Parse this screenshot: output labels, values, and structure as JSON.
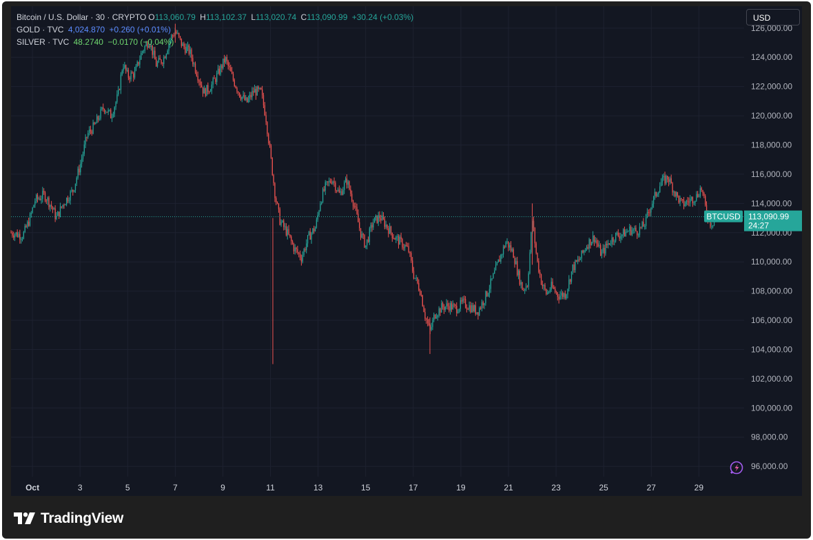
{
  "legend": {
    "main": {
      "title": "Bitcoin / U.S. Dollar · 30 · CRYPTO",
      "open_label": "O",
      "open": "113,060.79",
      "high_label": "H",
      "high": "113,102.37",
      "low_label": "L",
      "low": "113,020.74",
      "close_label": "C",
      "close": "113,090.99",
      "change": "+30.24 (+0.03%)"
    },
    "gold": {
      "title": "GOLD · TVC",
      "value": "4,024.870",
      "change": "+0.260 (+0.01%)"
    },
    "silver": {
      "title": "SILVER · TVC",
      "value": "48.2740",
      "change": "−0.0170 (−0.04%)"
    }
  },
  "currency_button": "USD",
  "price_tag": {
    "symbol": "BTCUSD",
    "price": "113,090.99",
    "countdown": "24:27"
  },
  "brand": "TradingView",
  "colors": {
    "up": "#26a69a",
    "down": "#ef5350",
    "background": "#131722",
    "grid": "#1e2230",
    "tag": "#26a69a"
  },
  "icons": {
    "logo": "tradingview-logo-icon",
    "pulse": "lightning-pulse-icon"
  },
  "chart_data": {
    "type": "candlestick",
    "symbol": "BTCUSD",
    "interval": "30",
    "y_ticks": [
      96000,
      98000,
      100000,
      102000,
      104000,
      106000,
      108000,
      110000,
      112000,
      114000,
      116000,
      118000,
      120000,
      122000,
      124000,
      126000
    ],
    "y_tick_labels": [
      "96,000.00",
      "98,000.00",
      "100,000.00",
      "102,000.00",
      "104,000.00",
      "106,000.00",
      "108,000.00",
      "110,000.00",
      "112,000.00",
      "114,000.00",
      "116,000.00",
      "118,000.00",
      "120,000.00",
      "122,000.00",
      "124,000.00",
      "126,000.00"
    ],
    "x_labels": [
      "Oct",
      "3",
      "5",
      "7",
      "9",
      "11",
      "13",
      "15",
      "17",
      "19",
      "21",
      "23",
      "25",
      "27",
      "29"
    ],
    "x_label_days": [
      1,
      3,
      5,
      7,
      9,
      11,
      13,
      15,
      17,
      19,
      21,
      23,
      25,
      27,
      29
    ],
    "x_range_days": [
      0.1,
      30.9
    ],
    "ylim": [
      95300,
      127500
    ],
    "last_price": 113090.99,
    "price_path": [
      [
        0.1,
        112000
      ],
      [
        0.6,
        111800
      ],
      [
        0.9,
        113000
      ],
      [
        1.1,
        114200
      ],
      [
        1.5,
        114600
      ],
      [
        1.8,
        113800
      ],
      [
        2.0,
        113000
      ],
      [
        2.3,
        114000
      ],
      [
        2.7,
        114900
      ],
      [
        3.0,
        116600
      ],
      [
        3.3,
        118700
      ],
      [
        3.6,
        119300
      ],
      [
        4.0,
        120600
      ],
      [
        4.3,
        120000
      ],
      [
        4.6,
        121400
      ],
      [
        4.8,
        123600
      ],
      [
        5.0,
        122700
      ],
      [
        5.3,
        122900
      ],
      [
        5.6,
        124400
      ],
      [
        5.9,
        125200
      ],
      [
        6.2,
        123500
      ],
      [
        6.5,
        123900
      ],
      [
        6.8,
        125300
      ],
      [
        7.0,
        125800
      ],
      [
        7.3,
        124800
      ],
      [
        7.6,
        124400
      ],
      [
        7.9,
        123000
      ],
      [
        8.2,
        121600
      ],
      [
        8.5,
        122000
      ],
      [
        8.8,
        122900
      ],
      [
        9.1,
        123900
      ],
      [
        9.4,
        122600
      ],
      [
        9.7,
        121500
      ],
      [
        10.0,
        120900
      ],
      [
        10.3,
        121700
      ],
      [
        10.6,
        121600
      ],
      [
        10.8,
        120000
      ],
      [
        11.0,
        117300
      ],
      [
        11.2,
        114500
      ],
      [
        11.4,
        112800
      ],
      [
        11.7,
        112000
      ],
      [
        12.0,
        110900
      ],
      [
        12.3,
        110300
      ],
      [
        12.6,
        111700
      ],
      [
        12.9,
        112400
      ],
      [
        13.1,
        114200
      ],
      [
        13.3,
        115100
      ],
      [
        13.6,
        115700
      ],
      [
        13.9,
        114600
      ],
      [
        14.2,
        115600
      ],
      [
        14.5,
        114000
      ],
      [
        14.8,
        111900
      ],
      [
        15.0,
        111100
      ],
      [
        15.3,
        112700
      ],
      [
        15.6,
        113100
      ],
      [
        15.9,
        112400
      ],
      [
        16.2,
        111700
      ],
      [
        16.5,
        111300
      ],
      [
        16.8,
        110800
      ],
      [
        17.0,
        109200
      ],
      [
        17.3,
        108000
      ],
      [
        17.5,
        106300
      ],
      [
        17.7,
        105200
      ],
      [
        17.9,
        106400
      ],
      [
        18.2,
        106900
      ],
      [
        18.5,
        107000
      ],
      [
        18.8,
        106800
      ],
      [
        19.1,
        107200
      ],
      [
        19.4,
        106900
      ],
      [
        19.7,
        106600
      ],
      [
        20.0,
        107500
      ],
      [
        20.3,
        108700
      ],
      [
        20.6,
        110100
      ],
      [
        20.9,
        111400
      ],
      [
        21.2,
        110600
      ],
      [
        21.4,
        109200
      ],
      [
        21.6,
        108100
      ],
      [
        21.8,
        108500
      ],
      [
        22.0,
        112900
      ],
      [
        22.2,
        110100
      ],
      [
        22.4,
        108500
      ],
      [
        22.6,
        107800
      ],
      [
        22.8,
        108300
      ],
      [
        23.1,
        107700
      ],
      [
        23.4,
        107800
      ],
      [
        23.7,
        109600
      ],
      [
        24.0,
        110200
      ],
      [
        24.3,
        111200
      ],
      [
        24.6,
        111700
      ],
      [
        24.9,
        110500
      ],
      [
        25.2,
        111300
      ],
      [
        25.5,
        111800
      ],
      [
        25.8,
        111900
      ],
      [
        26.1,
        112200
      ],
      [
        26.4,
        112100
      ],
      [
        26.7,
        112500
      ],
      [
        26.9,
        113500
      ],
      [
        27.1,
        114300
      ],
      [
        27.4,
        115400
      ],
      [
        27.7,
        115800
      ],
      [
        28.0,
        114700
      ],
      [
        28.3,
        113900
      ],
      [
        28.6,
        114200
      ],
      [
        28.9,
        114500
      ],
      [
        29.1,
        115100
      ],
      [
        29.3,
        113500
      ],
      [
        29.5,
        112600
      ],
      [
        29.8,
        113091
      ]
    ],
    "wicks": [
      [
        11.1,
        103000,
        113000
      ],
      [
        17.7,
        103700,
        106200
      ],
      [
        22.0,
        109800,
        114000
      ],
      [
        7.0,
        125000,
        126300
      ]
    ]
  }
}
